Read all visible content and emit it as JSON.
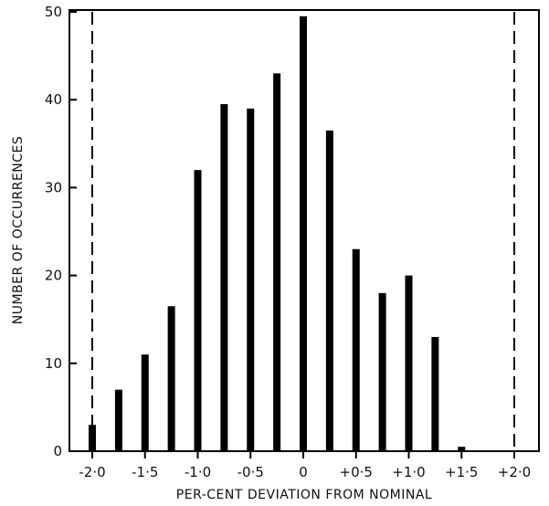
{
  "chart_data": {
    "type": "bar",
    "title": "",
    "xlabel": "PER-CENT DEVIATION FROM NOMINAL",
    "ylabel": "NUMBER OF OCCURRENCES",
    "x_values": [
      -2.0,
      -1.75,
      -1.5,
      -1.25,
      -1.0,
      -0.75,
      -0.5,
      -0.25,
      0.0,
      0.25,
      0.5,
      0.75,
      1.0,
      1.25,
      1.5
    ],
    "values": [
      3,
      7,
      11,
      16.5,
      32,
      39.5,
      39,
      43,
      49.5,
      36.5,
      23,
      18,
      20,
      13,
      0.5
    ],
    "xlim": [
      -2.3,
      2.3
    ],
    "ylim": [
      0,
      50
    ],
    "x_ticks": [
      {
        "value": -2.0,
        "label": "-2·0"
      },
      {
        "value": -1.5,
        "label": "-1·5"
      },
      {
        "value": -1.0,
        "label": "-1·0"
      },
      {
        "value": -0.5,
        "label": "-0·5"
      },
      {
        "value": 0.0,
        "label": "0"
      },
      {
        "value": 0.5,
        "label": "+0·5"
      },
      {
        "value": 1.0,
        "label": "+1·0"
      },
      {
        "value": 1.5,
        "label": "+1·5"
      },
      {
        "value": 2.0,
        "label": "+2·0"
      }
    ],
    "y_ticks": [
      {
        "value": 0,
        "label": "0"
      },
      {
        "value": 10,
        "label": "10"
      },
      {
        "value": 20,
        "label": "20"
      },
      {
        "value": 30,
        "label": "30"
      },
      {
        "value": 40,
        "label": "40"
      },
      {
        "value": 50,
        "label": "50"
      }
    ],
    "reference_lines": [
      -2.0,
      2.0
    ],
    "grid": false,
    "bar_color": "#000000",
    "line_color": "#000000"
  }
}
